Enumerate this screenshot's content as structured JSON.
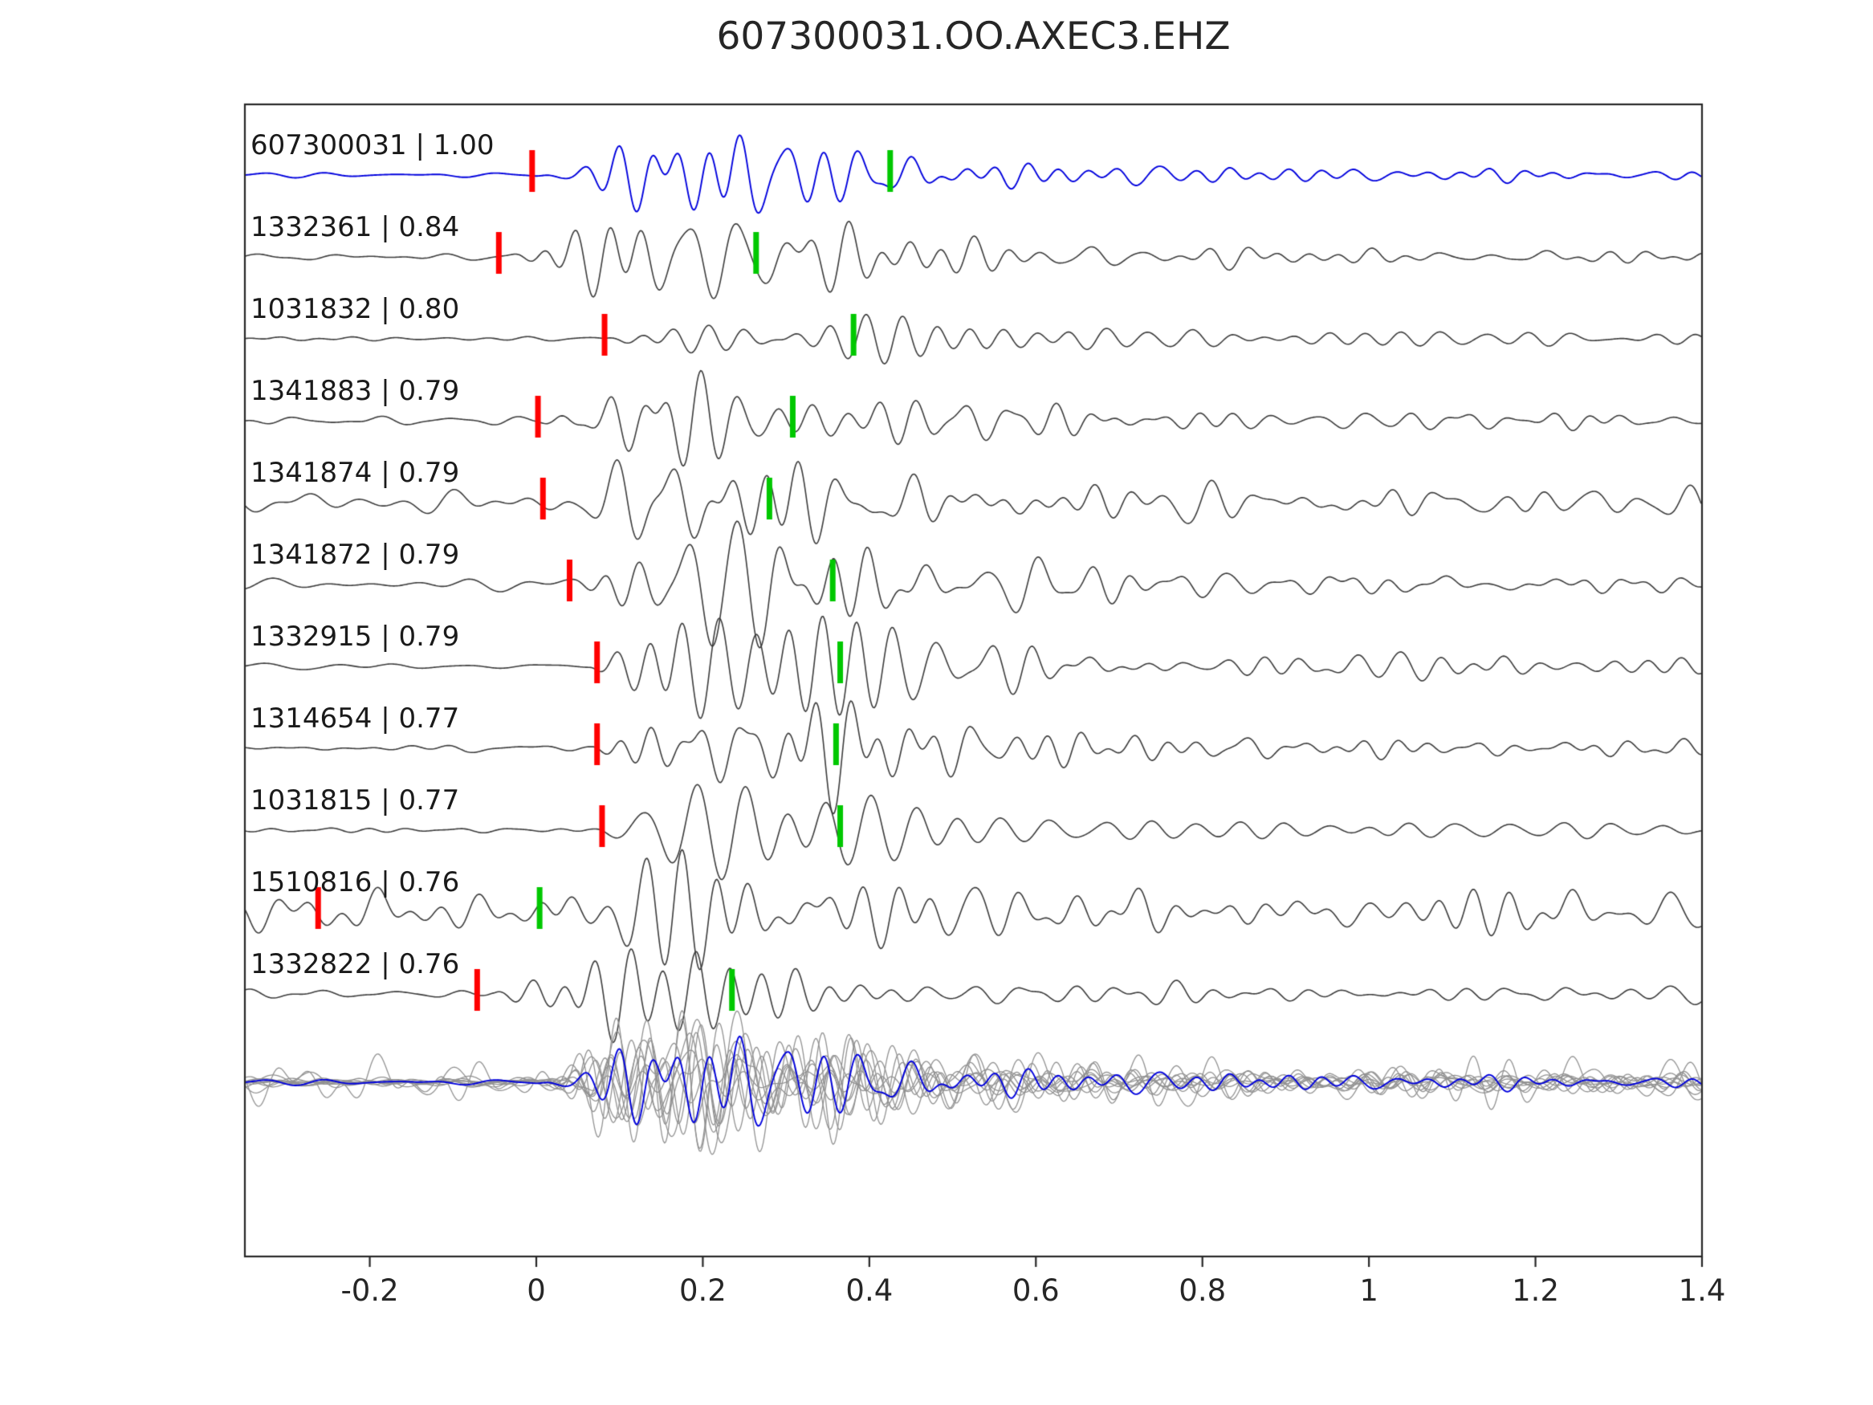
{
  "title": "607300031.OO.AXEC3.EHZ",
  "chart_data": {
    "type": "line",
    "title": "607300031.OO.AXEC3.EHZ",
    "xlabel": "",
    "ylabel": "",
    "grid": false,
    "xlim": [
      -0.35,
      1.4
    ],
    "x_ticks": [
      {
        "value": -0.2,
        "label": "-0.2"
      },
      {
        "value": 0,
        "label": "0"
      },
      {
        "value": 0.2,
        "label": "0.2"
      },
      {
        "value": 0.4,
        "label": "0.4"
      },
      {
        "value": 0.6,
        "label": "0.6"
      },
      {
        "value": 0.8,
        "label": "0.8"
      },
      {
        "value": 1,
        "label": "1"
      },
      {
        "value": 1.2,
        "label": "1.2"
      },
      {
        "value": 1.4,
        "label": "1.4"
      }
    ],
    "colors": {
      "template": "#0000dd",
      "trace": "#3c3c3c",
      "red_pick": "#ff0000",
      "green_pick": "#00c800",
      "overlay": "#929292",
      "axis": "#262626"
    },
    "traces": [
      {
        "event_id": "607300031",
        "correlation": "1.00",
        "label": "607300031 | 1.00",
        "color": "#0000dd",
        "red_pick": -0.005,
        "green_pick": 0.425,
        "onset": 0.0,
        "noise": 0.06,
        "amp": 1.0,
        "coda": 0.2,
        "seed": 101
      },
      {
        "event_id": "1332361",
        "correlation": "0.84",
        "label": "1332361 | 0.84",
        "color": "#3c3c3c",
        "red_pick": -0.045,
        "green_pick": 0.264,
        "onset": -0.04,
        "noise": 0.1,
        "amp": 0.9,
        "coda": 0.25,
        "seed": 202
      },
      {
        "event_id": "1031832",
        "correlation": "0.80",
        "label": "1031832 | 0.80",
        "color": "#3c3c3c",
        "red_pick": 0.082,
        "green_pick": 0.381,
        "onset": 0.075,
        "noise": 0.08,
        "amp": 0.95,
        "coda": 0.25,
        "seed": 303
      },
      {
        "event_id": "1341883",
        "correlation": "0.79",
        "label": "1341883 | 0.79",
        "color": "#3c3c3c",
        "red_pick": 0.002,
        "green_pick": 0.308,
        "onset": 0.0,
        "noise": 0.12,
        "amp": 0.85,
        "coda": 0.3,
        "seed": 404
      },
      {
        "event_id": "1341874",
        "correlation": "0.79",
        "label": "1341874 | 0.79",
        "color": "#3c3c3c",
        "red_pick": 0.008,
        "green_pick": 0.28,
        "onset": 0.005,
        "noise": 0.3,
        "amp": 0.85,
        "coda": 0.35,
        "seed": 505
      },
      {
        "event_id": "1341872",
        "correlation": "0.79",
        "label": "1341872 | 0.79",
        "color": "#3c3c3c",
        "red_pick": 0.04,
        "green_pick": 0.356,
        "onset": 0.035,
        "noise": 0.28,
        "amp": 0.85,
        "coda": 0.35,
        "seed": 606
      },
      {
        "event_id": "1332915",
        "correlation": "0.79",
        "label": "1332915 | 0.79",
        "color": "#3c3c3c",
        "red_pick": 0.073,
        "green_pick": 0.365,
        "onset": 0.065,
        "noise": 0.1,
        "amp": 1.0,
        "coda": 0.45,
        "seed": 707
      },
      {
        "event_id": "1314654",
        "correlation": "0.77",
        "label": "1314654 | 0.77",
        "color": "#3c3c3c",
        "red_pick": 0.073,
        "green_pick": 0.36,
        "onset": 0.065,
        "noise": 0.09,
        "amp": 0.95,
        "coda": 0.3,
        "seed": 808
      },
      {
        "event_id": "1031815",
        "correlation": "0.77",
        "label": "1031815 | 0.77",
        "color": "#3c3c3c",
        "red_pick": 0.079,
        "green_pick": 0.365,
        "onset": 0.07,
        "noise": 0.08,
        "amp": 0.95,
        "coda": 0.3,
        "seed": 909
      },
      {
        "event_id": "1510816",
        "correlation": "0.76",
        "label": "1510816 | 0.76",
        "color": "#3c3c3c",
        "red_pick": -0.262,
        "green_pick": 0.004,
        "onset": 0.0,
        "noise": 0.55,
        "amp": 0.8,
        "coda": 0.5,
        "seed": 1010
      },
      {
        "event_id": "1332822",
        "correlation": "0.76",
        "label": "1332822 | 0.76",
        "color": "#3c3c3c",
        "red_pick": -0.071,
        "green_pick": 0.235,
        "onset": -0.05,
        "noise": 0.18,
        "amp": 0.85,
        "coda": 0.3,
        "seed": 1111
      }
    ],
    "overlay_row": {
      "aligned_onset": 0,
      "contains": "all traces superimposed, template in blue"
    }
  }
}
